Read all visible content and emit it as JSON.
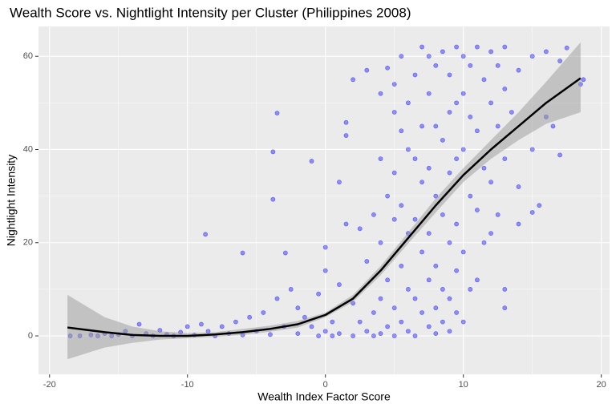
{
  "chart_data": {
    "type": "scatter",
    "title": "Wealth Score vs. Nightlight Intensity per Cluster (Philippines 2008)",
    "x_label": "Wealth Index Factor Score",
    "y_label": "Nightlight Intensity",
    "xlim": [
      -20.8,
      20.6
    ],
    "ylim": [
      -8.25,
      66.4
    ],
    "xticks": [
      -20,
      -10,
      0,
      10,
      20
    ],
    "yticks": [
      0,
      20,
      40,
      60
    ],
    "x_minor_grid": [
      -15,
      -5,
      5,
      15
    ],
    "y_minor_grid": [
      10,
      30,
      50
    ],
    "grid": true,
    "color": "#0000ff",
    "x": [
      -18.5,
      -17.8,
      -17,
      -16.5,
      -16,
      -15.5,
      -15,
      -14.5,
      -14,
      -13.5,
      -13,
      -12.5,
      -12,
      -11.5,
      -11,
      -10.5,
      -10,
      -9.5,
      -9,
      -8.7,
      -8.5,
      -8,
      -7.5,
      -7,
      -6.5,
      -6,
      -6,
      -5.5,
      -5,
      -4.5,
      -4,
      -3.8,
      -3.8,
      -3.5,
      -3.5,
      -3,
      -2.9,
      -2.5,
      -2,
      -2,
      -1.5,
      -1,
      -1,
      -0.5,
      -0.5,
      0,
      0,
      0,
      0.5,
      0.5,
      1,
      1,
      1,
      1.5,
      1.5,
      1.5,
      2,
      2,
      2,
      2.5,
      2.5,
      3,
      3,
      3,
      3.5,
      3.5,
      3.5,
      4,
      4,
      4,
      4,
      4,
      4.5,
      4.5,
      4.5,
      4.5,
      5,
      5,
      5,
      5,
      5,
      5,
      5.5,
      5.5,
      5.5,
      5.5,
      5.5,
      6,
      6,
      6,
      6,
      6,
      6.5,
      6.5,
      6.5,
      6.5,
      6.5,
      7,
      7,
      7,
      7,
      7,
      7.5,
      7.5,
      7.5,
      7.5,
      7.5,
      7.5,
      8,
      8,
      8,
      8,
      8,
      8,
      8.5,
      8.5,
      8.5,
      8.5,
      8.5,
      9,
      9,
      9,
      9,
      9,
      9,
      9.5,
      9.5,
      9.5,
      9.5,
      9.5,
      9.5,
      10,
      10,
      10,
      10,
      10,
      10.5,
      10.5,
      10.5,
      10.5,
      11,
      11,
      11,
      11,
      11.5,
      11.5,
      11.5,
      12,
      12,
      12,
      12,
      12.5,
      12.5,
      12.5,
      13,
      13,
      13,
      13,
      13,
      13.5,
      14,
      14,
      14,
      15,
      15,
      15,
      15.5,
      16,
      16,
      16.5,
      17,
      17,
      17.5,
      18.5,
      18.7
    ],
    "values": [
      0,
      0,
      0.2,
      0,
      0.5,
      0,
      0.3,
      1,
      0,
      2.5,
      0.5,
      0,
      1.2,
      0.3,
      0,
      0.8,
      2,
      0.2,
      2.5,
      21.8,
      1,
      0,
      2,
      0.5,
      3,
      17.8,
      0.2,
      4,
      1,
      5,
      0.3,
      39.5,
      29.3,
      47.8,
      8,
      2,
      17.8,
      10,
      6,
      0.5,
      4,
      37.5,
      2,
      9,
      0,
      19,
      14,
      1,
      3,
      0,
      11,
      33,
      0.5,
      43,
      45.8,
      24,
      55,
      7,
      0,
      23,
      3,
      57,
      16,
      1,
      26,
      5,
      0,
      52,
      38,
      20,
      8,
      0.5,
      57.5,
      30,
      12,
      2,
      54,
      48,
      35,
      25,
      6,
      0,
      60,
      44,
      28,
      15,
      3,
      50,
      40,
      22,
      10,
      1,
      56,
      38,
      25,
      8,
      0,
      62,
      45,
      33,
      18,
      5,
      60,
      52,
      36,
      22,
      12,
      2,
      58,
      45,
      30,
      15,
      6,
      0.5,
      61,
      42,
      26,
      10,
      3,
      56,
      48,
      35,
      20,
      8,
      1,
      62,
      50,
      38,
      24,
      14,
      5,
      60,
      52,
      40,
      18,
      3,
      58,
      47,
      30,
      10,
      62,
      44,
      27,
      12,
      55,
      36,
      20,
      61,
      50,
      33,
      22,
      58,
      45,
      26,
      62,
      53,
      38,
      10,
      6,
      48,
      57,
      32,
      24,
      60,
      40,
      26.5,
      28,
      61,
      47,
      45,
      59,
      38.8,
      61.8,
      54,
      55
    ],
    "smooth": {
      "color": "#000000",
      "band_color": "#999999",
      "x": [
        -18.7,
        -16,
        -14,
        -12,
        -10,
        -8,
        -6,
        -4,
        -2,
        0,
        2,
        4,
        6,
        8,
        10,
        12,
        14,
        16,
        18.5
      ],
      "y": [
        1.8,
        0.8,
        0.2,
        0,
        0,
        0.3,
        0.8,
        1.5,
        2.5,
        4.5,
        8,
        14,
        21,
        28,
        34.5,
        40,
        45,
        50,
        55.3
      ],
      "lower": [
        -5,
        -2.5,
        -1.5,
        -0.8,
        -0.5,
        -0.2,
        0.2,
        0.9,
        1.8,
        4,
        7.3,
        13,
        19.8,
        26.5,
        33,
        38,
        42,
        45.5,
        48
      ],
      "upper": [
        8.8,
        4,
        2,
        1,
        0.6,
        0.8,
        1.5,
        2.2,
        3.2,
        5,
        8.8,
        15,
        22.2,
        29.5,
        36,
        42,
        48,
        54.5,
        63
      ]
    }
  }
}
